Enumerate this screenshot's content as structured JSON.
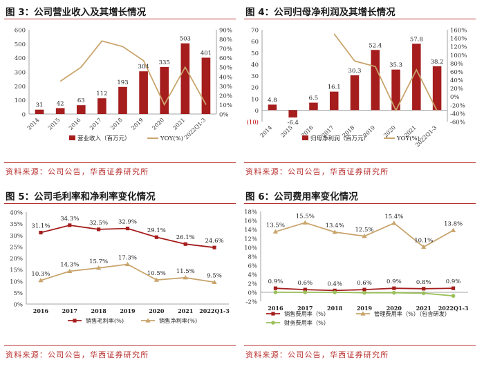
{
  "colors": {
    "accent": "#b8312f",
    "bar": "#a51d1d",
    "line": "#c9a46c",
    "green": "#9bbf5a",
    "axis": "#404040"
  },
  "panels": [
    {
      "title": "图 3：公司营业收入及其增长情况",
      "source": "资料来源：公司公告，华西证券研究所"
    },
    {
      "title": "图 4：公司归母净利润及其增长情况",
      "source": "资料来源：公司公告，华西证券研究所"
    },
    {
      "title": "图 5：公司毛利率和净利率变化情况",
      "source": "资料来源：公司公告，华西证券研究所"
    },
    {
      "title": "图 6：公司费用率变化情况",
      "source": "资料来源：公司公告，华西证券研究所"
    }
  ],
  "chart_data": [
    {
      "type": "bar",
      "categories": [
        "2014",
        "2015",
        "2016",
        "2017",
        "2018",
        "2019",
        "2020",
        "2021",
        "2022Q1-3"
      ],
      "series": [
        {
          "name": "营业收入（百万元）",
          "kind": "bar",
          "axis": "left",
          "values": [
            31,
            42,
            63,
            112,
            193,
            304,
            335,
            503,
            401
          ],
          "labels": [
            "31",
            "42",
            "63",
            "112",
            "193",
            "304",
            "335",
            "503",
            "401"
          ]
        },
        {
          "name": "YOY(%)",
          "kind": "line",
          "axis": "right",
          "values": [
            null,
            35,
            50,
            78,
            72,
            57,
            10,
            50,
            10
          ]
        }
      ],
      "yticks": [
        "0",
        "100",
        "200",
        "300",
        "400",
        "500",
        "600"
      ],
      "y2ticks": [
        "0%",
        "10%",
        "20%",
        "30%",
        "40%",
        "50%",
        "60%",
        "70%",
        "80%",
        "90%"
      ],
      "ylim": [
        0,
        600
      ],
      "y2lim": [
        0,
        90
      ]
    },
    {
      "type": "bar",
      "categories": [
        "2014",
        "2015",
        "2016",
        "2017",
        "2018",
        "2019",
        "2020",
        "2021",
        "2022Q1-3"
      ],
      "series": [
        {
          "name": "归母净利润（百万元）",
          "kind": "bar",
          "axis": "left",
          "values": [
            4.8,
            -6.4,
            6.5,
            16.1,
            30.3,
            52.4,
            35.3,
            57.8,
            38.2
          ],
          "labels": [
            "4.8",
            "-6.4",
            "6.5",
            "16.1",
            "30.3",
            "52.4",
            "35.3",
            "57.8",
            "38.2"
          ]
        },
        {
          "name": "YOY(%)",
          "kind": "line",
          "axis": "right",
          "values": [
            null,
            null,
            null,
            150,
            85,
            72,
            -33,
            64,
            -34
          ]
        }
      ],
      "yticks": [
        "(10)",
        "0",
        "10",
        "20",
        "30",
        "40",
        "50",
        "60",
        "70"
      ],
      "y2ticks": [
        "-60%",
        "-40%",
        "-20%",
        "0%",
        "20%",
        "40%",
        "60%",
        "80%",
        "100%",
        "120%",
        "140%",
        "160%"
      ],
      "ylim": [
        -10,
        70
      ],
      "y2lim": [
        -60,
        160
      ]
    },
    {
      "type": "line",
      "categories": [
        "2016",
        "2017",
        "2018",
        "2019",
        "2020",
        "2021",
        "2022Q1-3"
      ],
      "series": [
        {
          "name": "销售毛利率(%)",
          "color": "red",
          "marker": "square",
          "values": [
            31.1,
            34.3,
            32.5,
            32.9,
            29.1,
            26.1,
            24.6
          ],
          "labels": [
            "31.1%",
            "34.3%",
            "32.5%",
            "32.9%",
            "29.1%",
            "26.1%",
            "24.6%"
          ]
        },
        {
          "name": "销售净利率(%)",
          "color": "tan",
          "marker": "triangle",
          "values": [
            10.3,
            14.3,
            15.7,
            17.3,
            10.5,
            11.5,
            9.5
          ],
          "labels": [
            "10.3%",
            "14.3%",
            "15.7%",
            "17.3%",
            "10.5%",
            "11.5%",
            "9.5%"
          ]
        }
      ],
      "yticks": [
        "0%",
        "5%",
        "10%",
        "15%",
        "20%",
        "25%",
        "30%",
        "35%",
        "40%"
      ],
      "ylim": [
        0,
        40
      ]
    },
    {
      "type": "line",
      "categories": [
        "2016",
        "2017",
        "2018",
        "2019",
        "2020",
        "2021",
        "2022Q1-3"
      ],
      "series": [
        {
          "name": "销售费用率（%）",
          "color": "red",
          "marker": "square",
          "values": [
            0.9,
            0.6,
            0.4,
            0.6,
            0.9,
            0.8,
            0.9
          ],
          "labels": [
            "0.9%",
            "0.6%",
            "0.4%",
            "0.6%",
            "0.9%",
            "0.8%",
            "0.9%"
          ]
        },
        {
          "name": "管理费用率（%）（包含研发）",
          "color": "tan",
          "marker": "triangle",
          "values": [
            13.5,
            15.5,
            13.4,
            12.5,
            15.4,
            10.1,
            13.8
          ],
          "labels": [
            "13.5%",
            "15.5%",
            "13.4%",
            "12.5%",
            "15.4%",
            "10.1%",
            "13.8%"
          ]
        },
        {
          "name": "财务费用率（%）",
          "color": "green",
          "marker": "circle",
          "values": [
            0.0,
            0.0,
            0.0,
            -0.1,
            -0.1,
            -0.2,
            -0.8
          ],
          "labels": []
        }
      ],
      "yticks": [
        "-2%",
        "0%",
        "2%",
        "4%",
        "6%",
        "8%",
        "10%",
        "12%",
        "14%",
        "16%",
        "18%"
      ],
      "ylim": [
        -2,
        18
      ]
    }
  ]
}
